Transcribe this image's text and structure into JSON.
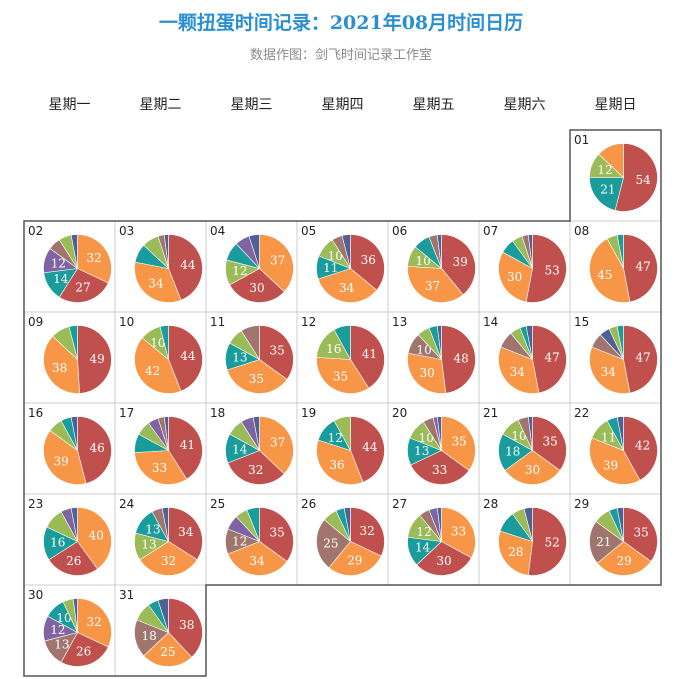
{
  "title": "一颗扭蛋时间记录：2021年08月时间日历",
  "subtitle": "数据作图：剑飞时间记录工作室",
  "weekdays": [
    "星期一",
    "星期二",
    "星期三",
    "星期四",
    "星期五",
    "星期六",
    "星期日"
  ],
  "colors": {
    "red": "#c0504d",
    "orange": "#f79646",
    "teal": "#1a9c9c",
    "green": "#9bbb59",
    "purple": "#8064a2",
    "mauve": "#a0756d",
    "navy": "#4f6195",
    "grid": "#cccccc",
    "border": "#555555"
  },
  "chart_data": {
    "type": "pie",
    "layout": "calendar",
    "year": 2021,
    "month": 8,
    "first_weekday": "星期日",
    "days": [
      {
        "day": "01",
        "slices": [
          {
            "c": "red",
            "v": 54,
            "label": "54"
          },
          {
            "c": "teal",
            "v": 21,
            "label": "21"
          },
          {
            "c": "green",
            "v": 12,
            "label": "12"
          },
          {
            "c": "orange",
            "v": 13,
            "label": ""
          }
        ]
      },
      {
        "day": "02",
        "slices": [
          {
            "c": "orange",
            "v": 32,
            "label": "32"
          },
          {
            "c": "red",
            "v": 27,
            "label": "27"
          },
          {
            "c": "teal",
            "v": 14,
            "label": "14"
          },
          {
            "c": "purple",
            "v": 12,
            "label": "12"
          },
          {
            "c": "mauve",
            "v": 6,
            "label": ""
          },
          {
            "c": "green",
            "v": 6,
            "label": ""
          },
          {
            "c": "navy",
            "v": 3,
            "label": ""
          }
        ]
      },
      {
        "day": "03",
        "slices": [
          {
            "c": "red",
            "v": 44,
            "label": "44"
          },
          {
            "c": "orange",
            "v": 34,
            "label": "34"
          },
          {
            "c": "teal",
            "v": 9,
            "label": ""
          },
          {
            "c": "green",
            "v": 8,
            "label": ""
          },
          {
            "c": "mauve",
            "v": 3,
            "label": ""
          },
          {
            "c": "navy",
            "v": 2,
            "label": ""
          }
        ]
      },
      {
        "day": "04",
        "slices": [
          {
            "c": "orange",
            "v": 37,
            "label": "37"
          },
          {
            "c": "red",
            "v": 30,
            "label": "30"
          },
          {
            "c": "green",
            "v": 12,
            "label": "12"
          },
          {
            "c": "teal",
            "v": 9,
            "label": ""
          },
          {
            "c": "purple",
            "v": 7,
            "label": ""
          },
          {
            "c": "navy",
            "v": 5,
            "label": ""
          }
        ]
      },
      {
        "day": "05",
        "slices": [
          {
            "c": "red",
            "v": 36,
            "label": "36"
          },
          {
            "c": "orange",
            "v": 34,
            "label": "34"
          },
          {
            "c": "teal",
            "v": 11,
            "label": "11"
          },
          {
            "c": "green",
            "v": 10,
            "label": "10"
          },
          {
            "c": "mauve",
            "v": 5,
            "label": ""
          },
          {
            "c": "navy",
            "v": 4,
            "label": ""
          }
        ]
      },
      {
        "day": "06",
        "slices": [
          {
            "c": "red",
            "v": 39,
            "label": "39"
          },
          {
            "c": "orange",
            "v": 37,
            "label": "37"
          },
          {
            "c": "green",
            "v": 10,
            "label": "10"
          },
          {
            "c": "teal",
            "v": 8,
            "label": ""
          },
          {
            "c": "mauve",
            "v": 4,
            "label": ""
          },
          {
            "c": "navy",
            "v": 2,
            "label": ""
          }
        ]
      },
      {
        "day": "07",
        "slices": [
          {
            "c": "red",
            "v": 53,
            "label": "53"
          },
          {
            "c": "orange",
            "v": 30,
            "label": "30"
          },
          {
            "c": "teal",
            "v": 7,
            "label": ""
          },
          {
            "c": "green",
            "v": 5,
            "label": ""
          },
          {
            "c": "mauve",
            "v": 3,
            "label": ""
          },
          {
            "c": "navy",
            "v": 2,
            "label": ""
          }
        ]
      },
      {
        "day": "08",
        "slices": [
          {
            "c": "red",
            "v": 47,
            "label": "47"
          },
          {
            "c": "orange",
            "v": 45,
            "label": "45"
          },
          {
            "c": "green",
            "v": 5,
            "label": ""
          },
          {
            "c": "teal",
            "v": 3,
            "label": ""
          }
        ]
      },
      {
        "day": "09",
        "slices": [
          {
            "c": "red",
            "v": 49,
            "label": "49"
          },
          {
            "c": "orange",
            "v": 38,
            "label": "38"
          },
          {
            "c": "green",
            "v": 9,
            "label": ""
          },
          {
            "c": "teal",
            "v": 4,
            "label": ""
          }
        ]
      },
      {
        "day": "10",
        "slices": [
          {
            "c": "red",
            "v": 44,
            "label": "44"
          },
          {
            "c": "orange",
            "v": 42,
            "label": "42"
          },
          {
            "c": "green",
            "v": 10,
            "label": "10"
          },
          {
            "c": "teal",
            "v": 4,
            "label": ""
          }
        ]
      },
      {
        "day": "11",
        "slices": [
          {
            "c": "red",
            "v": 35,
            "label": "35"
          },
          {
            "c": "orange",
            "v": 35,
            "label": "35"
          },
          {
            "c": "teal",
            "v": 13,
            "label": "13"
          },
          {
            "c": "green",
            "v": 8,
            "label": ""
          },
          {
            "c": "mauve",
            "v": 9,
            "label": ""
          }
        ]
      },
      {
        "day": "12",
        "slices": [
          {
            "c": "red",
            "v": 41,
            "label": "41"
          },
          {
            "c": "orange",
            "v": 35,
            "label": "35"
          },
          {
            "c": "green",
            "v": 16,
            "label": "16"
          },
          {
            "c": "teal",
            "v": 8,
            "label": ""
          }
        ]
      },
      {
        "day": "13",
        "slices": [
          {
            "c": "red",
            "v": 48,
            "label": "48"
          },
          {
            "c": "orange",
            "v": 30,
            "label": "30"
          },
          {
            "c": "mauve",
            "v": 10,
            "label": "10"
          },
          {
            "c": "green",
            "v": 6,
            "label": ""
          },
          {
            "c": "teal",
            "v": 4,
            "label": ""
          },
          {
            "c": "navy",
            "v": 2,
            "label": ""
          }
        ]
      },
      {
        "day": "14",
        "slices": [
          {
            "c": "red",
            "v": 47,
            "label": "47"
          },
          {
            "c": "orange",
            "v": 34,
            "label": "34"
          },
          {
            "c": "mauve",
            "v": 8,
            "label": ""
          },
          {
            "c": "green",
            "v": 5,
            "label": ""
          },
          {
            "c": "teal",
            "v": 3,
            "label": ""
          },
          {
            "c": "navy",
            "v": 3,
            "label": ""
          }
        ]
      },
      {
        "day": "15",
        "slices": [
          {
            "c": "red",
            "v": 47,
            "label": "47"
          },
          {
            "c": "orange",
            "v": 34,
            "label": "34"
          },
          {
            "c": "mauve",
            "v": 7,
            "label": ""
          },
          {
            "c": "navy",
            "v": 5,
            "label": ""
          },
          {
            "c": "green",
            "v": 4,
            "label": ""
          },
          {
            "c": "teal",
            "v": 3,
            "label": ""
          }
        ]
      },
      {
        "day": "16",
        "slices": [
          {
            "c": "red",
            "v": 46,
            "label": "46"
          },
          {
            "c": "orange",
            "v": 39,
            "label": "39"
          },
          {
            "c": "green",
            "v": 7,
            "label": ""
          },
          {
            "c": "teal",
            "v": 5,
            "label": ""
          },
          {
            "c": "navy",
            "v": 3,
            "label": ""
          }
        ]
      },
      {
        "day": "17",
        "slices": [
          {
            "c": "red",
            "v": 41,
            "label": "41"
          },
          {
            "c": "orange",
            "v": 33,
            "label": "33"
          },
          {
            "c": "teal",
            "v": 9,
            "label": ""
          },
          {
            "c": "green",
            "v": 7,
            "label": ""
          },
          {
            "c": "purple",
            "v": 5,
            "label": ""
          },
          {
            "c": "mauve",
            "v": 3,
            "label": ""
          },
          {
            "c": "navy",
            "v": 2,
            "label": ""
          }
        ]
      },
      {
        "day": "18",
        "slices": [
          {
            "c": "orange",
            "v": 37,
            "label": "37"
          },
          {
            "c": "red",
            "v": 32,
            "label": "32"
          },
          {
            "c": "teal",
            "v": 14,
            "label": "14"
          },
          {
            "c": "green",
            "v": 8,
            "label": ""
          },
          {
            "c": "purple",
            "v": 6,
            "label": ""
          },
          {
            "c": "navy",
            "v": 3,
            "label": ""
          }
        ]
      },
      {
        "day": "19",
        "slices": [
          {
            "c": "red",
            "v": 44,
            "label": "44"
          },
          {
            "c": "orange",
            "v": 36,
            "label": "36"
          },
          {
            "c": "teal",
            "v": 12,
            "label": "12"
          },
          {
            "c": "green",
            "v": 8,
            "label": ""
          }
        ]
      },
      {
        "day": "20",
        "slices": [
          {
            "c": "orange",
            "v": 35,
            "label": "35"
          },
          {
            "c": "red",
            "v": 33,
            "label": "33"
          },
          {
            "c": "teal",
            "v": 13,
            "label": "13"
          },
          {
            "c": "green",
            "v": 10,
            "label": "10"
          },
          {
            "c": "mauve",
            "v": 5,
            "label": ""
          },
          {
            "c": "purple",
            "v": 2,
            "label": ""
          },
          {
            "c": "navy",
            "v": 2,
            "label": ""
          }
        ]
      },
      {
        "day": "21",
        "slices": [
          {
            "c": "red",
            "v": 35,
            "label": "35"
          },
          {
            "c": "orange",
            "v": 30,
            "label": "30"
          },
          {
            "c": "teal",
            "v": 18,
            "label": "18"
          },
          {
            "c": "green",
            "v": 10,
            "label": "10"
          },
          {
            "c": "mauve",
            "v": 5,
            "label": ""
          },
          {
            "c": "navy",
            "v": 2,
            "label": ""
          }
        ]
      },
      {
        "day": "22",
        "slices": [
          {
            "c": "red",
            "v": 42,
            "label": "42"
          },
          {
            "c": "orange",
            "v": 39,
            "label": "39"
          },
          {
            "c": "green",
            "v": 11,
            "label": "11"
          },
          {
            "c": "teal",
            "v": 5,
            "label": ""
          },
          {
            "c": "navy",
            "v": 3,
            "label": ""
          }
        ]
      },
      {
        "day": "23",
        "slices": [
          {
            "c": "orange",
            "v": 40,
            "label": "40"
          },
          {
            "c": "red",
            "v": 26,
            "label": "26"
          },
          {
            "c": "teal",
            "v": 16,
            "label": "16"
          },
          {
            "c": "green",
            "v": 10,
            "label": ""
          },
          {
            "c": "purple",
            "v": 5,
            "label": ""
          },
          {
            "c": "navy",
            "v": 3,
            "label": ""
          }
        ]
      },
      {
        "day": "24",
        "slices": [
          {
            "c": "red",
            "v": 34,
            "label": "34"
          },
          {
            "c": "orange",
            "v": 32,
            "label": "32"
          },
          {
            "c": "green",
            "v": 13,
            "label": "13"
          },
          {
            "c": "teal",
            "v": 13,
            "label": "13"
          },
          {
            "c": "mauve",
            "v": 5,
            "label": ""
          },
          {
            "c": "navy",
            "v": 3,
            "label": ""
          }
        ]
      },
      {
        "day": "25",
        "slices": [
          {
            "c": "red",
            "v": 35,
            "label": "35"
          },
          {
            "c": "orange",
            "v": 34,
            "label": "34"
          },
          {
            "c": "mauve",
            "v": 12,
            "label": "12"
          },
          {
            "c": "purple",
            "v": 7,
            "label": ""
          },
          {
            "c": "green",
            "v": 6,
            "label": ""
          },
          {
            "c": "teal",
            "v": 6,
            "label": ""
          }
        ]
      },
      {
        "day": "26",
        "slices": [
          {
            "c": "red",
            "v": 32,
            "label": "32"
          },
          {
            "c": "orange",
            "v": 29,
            "label": "29"
          },
          {
            "c": "mauve",
            "v": 25,
            "label": "25"
          },
          {
            "c": "green",
            "v": 7,
            "label": ""
          },
          {
            "c": "teal",
            "v": 4,
            "label": ""
          },
          {
            "c": "navy",
            "v": 3,
            "label": ""
          }
        ]
      },
      {
        "day": "27",
        "slices": [
          {
            "c": "orange",
            "v": 33,
            "label": "33"
          },
          {
            "c": "red",
            "v": 30,
            "label": "30"
          },
          {
            "c": "teal",
            "v": 14,
            "label": "14"
          },
          {
            "c": "green",
            "v": 12,
            "label": "12"
          },
          {
            "c": "mauve",
            "v": 5,
            "label": ""
          },
          {
            "c": "purple",
            "v": 4,
            "label": ""
          },
          {
            "c": "navy",
            "v": 2,
            "label": ""
          }
        ]
      },
      {
        "day": "28",
        "slices": [
          {
            "c": "red",
            "v": 52,
            "label": "52"
          },
          {
            "c": "orange",
            "v": 28,
            "label": "28"
          },
          {
            "c": "teal",
            "v": 10,
            "label": ""
          },
          {
            "c": "green",
            "v": 6,
            "label": ""
          },
          {
            "c": "navy",
            "v": 4,
            "label": ""
          }
        ]
      },
      {
        "day": "29",
        "slices": [
          {
            "c": "red",
            "v": 35,
            "label": "35"
          },
          {
            "c": "orange",
            "v": 29,
            "label": "29"
          },
          {
            "c": "mauve",
            "v": 21,
            "label": "21"
          },
          {
            "c": "green",
            "v": 8,
            "label": ""
          },
          {
            "c": "teal",
            "v": 4,
            "label": ""
          },
          {
            "c": "navy",
            "v": 3,
            "label": ""
          }
        ]
      },
      {
        "day": "30",
        "slices": [
          {
            "c": "orange",
            "v": 32,
            "label": "32"
          },
          {
            "c": "red",
            "v": 26,
            "label": "26"
          },
          {
            "c": "mauve",
            "v": 13,
            "label": "13"
          },
          {
            "c": "purple",
            "v": 12,
            "label": "12"
          },
          {
            "c": "teal",
            "v": 10,
            "label": "10"
          },
          {
            "c": "green",
            "v": 5,
            "label": ""
          },
          {
            "c": "navy",
            "v": 2,
            "label": ""
          }
        ]
      },
      {
        "day": "31",
        "slices": [
          {
            "c": "red",
            "v": 38,
            "label": "38"
          },
          {
            "c": "orange",
            "v": 25,
            "label": "25"
          },
          {
            "c": "mauve",
            "v": 18,
            "label": "18"
          },
          {
            "c": "green",
            "v": 9,
            "label": ""
          },
          {
            "c": "teal",
            "v": 5,
            "label": ""
          },
          {
            "c": "navy",
            "v": 5,
            "label": ""
          }
        ]
      }
    ]
  }
}
